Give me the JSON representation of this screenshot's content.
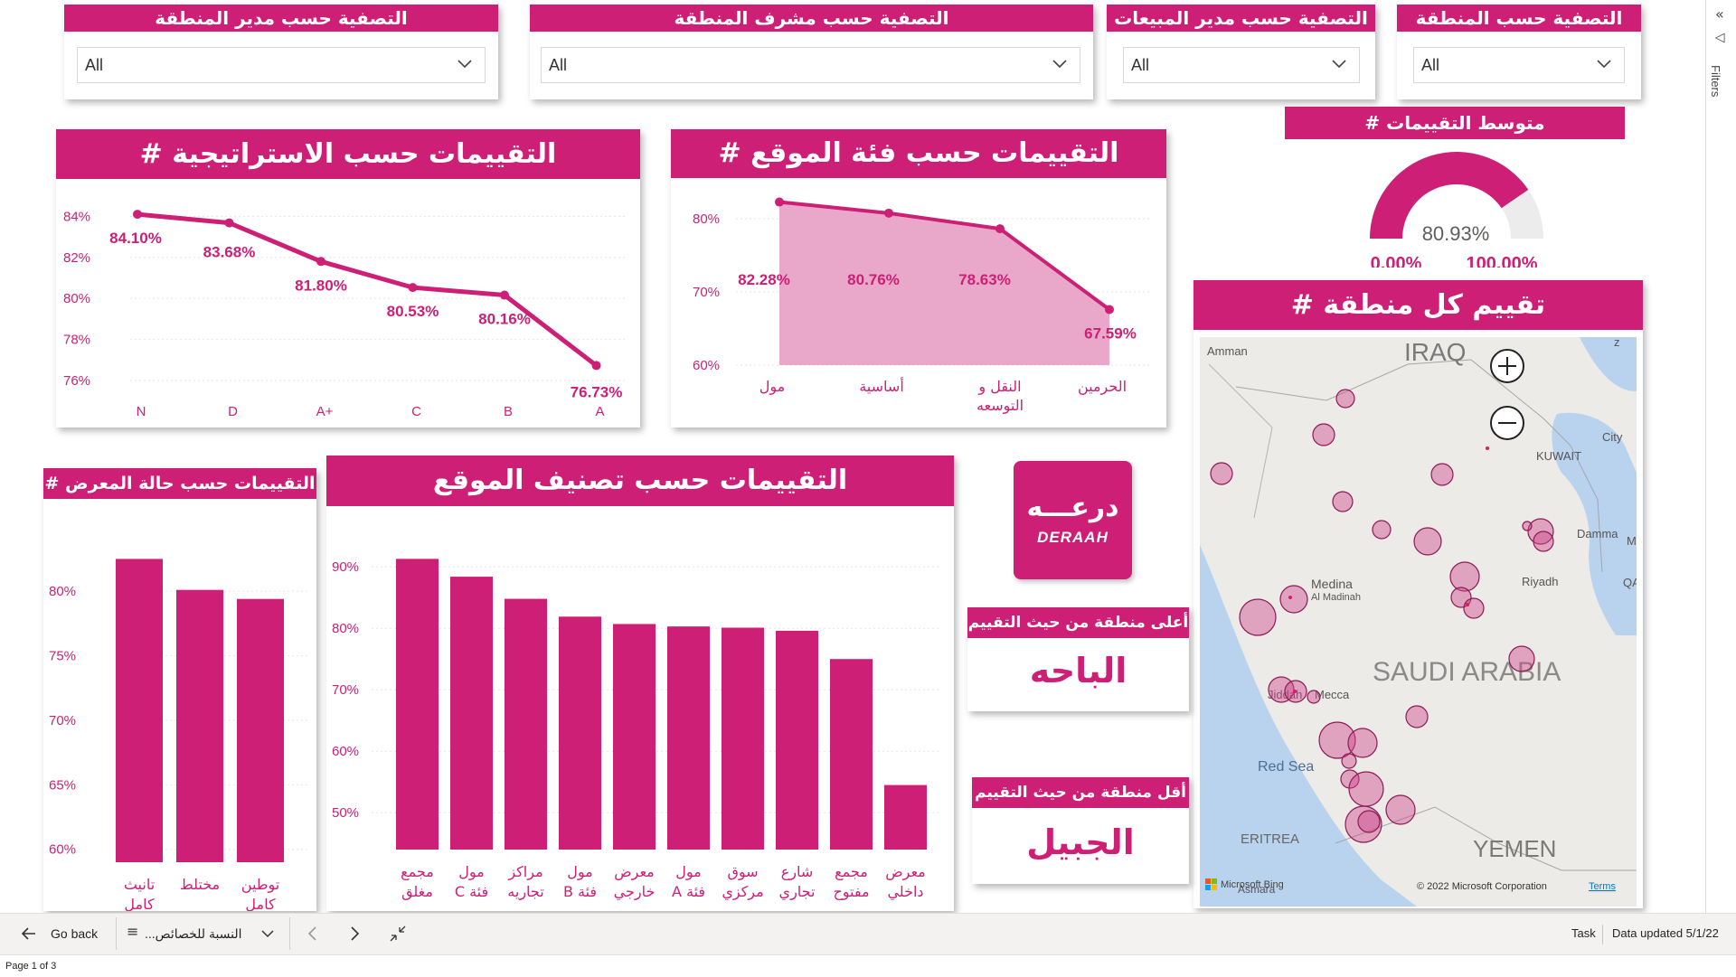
{
  "filters_pane": {
    "label": "Filters"
  },
  "slicers": [
    {
      "title": "التصفية حسب المنطقة",
      "value": "All"
    },
    {
      "title": "التصفية حسب مدير المبيعات",
      "value": "All"
    },
    {
      "title": "التصفية حسب مشرف المنطقة",
      "value": "All"
    },
    {
      "title": "التصفية حسب مدير المنطقة",
      "value": "All"
    }
  ],
  "strategy_chart": {
    "title": "# التقييمات حسب الاستراتيجية",
    "chart_data": {
      "type": "line",
      "categories": [
        "N",
        "D",
        "A+",
        "C",
        "B",
        "A"
      ],
      "values": [
        84.1,
        83.68,
        81.8,
        80.53,
        80.16,
        76.73
      ],
      "data_labels": [
        "84.10%",
        "83.68%",
        "81.80%",
        "80.53%",
        "80.16%",
        "76.73%"
      ],
      "yticks": [
        "84%",
        "82%",
        "80%",
        "78%",
        "76%"
      ],
      "ylim": [
        76,
        84.5
      ]
    }
  },
  "site_category_chart": {
    "title": "# التقييمات حسب فئة الموقع",
    "chart_data": {
      "type": "area",
      "categories": [
        "مول",
        "أساسية",
        "النقل و التوسعه",
        "الحرمين"
      ],
      "values": [
        82.28,
        80.76,
        78.63,
        67.59
      ],
      "data_labels": [
        "82.28%",
        "80.76%",
        "78.63%",
        "67.59%"
      ],
      "yticks": [
        "80%",
        "70%",
        "60%"
      ],
      "ylim": [
        60,
        85
      ]
    }
  },
  "gauge": {
    "title": "# متوسط التقييمات",
    "value": 80.93,
    "value_label": "80.93%",
    "min_label": "0.00%",
    "max_label": "100.00%"
  },
  "map": {
    "title": "# تقييم كل منطقة",
    "labels": {
      "iraq": "IRAQ",
      "amman": "Amman",
      "kuwait": "KUWAIT",
      "city": "City",
      "dammam": "Damma",
      "riyadh": "Riyadh",
      "medina": "Medina",
      "medina_ar": "Al Madinah",
      "saudi": "SAUDI ARABIA",
      "jiddah": "Jiddah",
      "mecca": "Mecca",
      "red_sea": "Red Sea",
      "eritrea": "ERITREA",
      "yemen": "YEMEN",
      "asmara": "Asmara",
      "qa": "QA",
      "z": "z",
      "m": "M"
    },
    "attribution": "© 2022 Microsoft Corporation",
    "terms": "Terms",
    "bing": "Microsoft Bing"
  },
  "showroom_chart": {
    "title": "# التقييمات حسب حالة المعرض",
    "chart_data": {
      "type": "bar",
      "categories": [
        "تانيث كامل",
        "مختلط",
        "توطين كامل"
      ],
      "values": [
        82.5,
        80.1,
        79.4
      ],
      "yticks": [
        "80%",
        "75%",
        "70%",
        "65%",
        "60%"
      ],
      "ylim": [
        59,
        84
      ]
    }
  },
  "classification_chart": {
    "title": "التقييمات حسب تصنيف الموقع",
    "chart_data": {
      "type": "bar",
      "categories": [
        "مجمع مغلق",
        "مول C فئة",
        "مراكز تجاريه",
        "مول B فئة",
        "معرض خارجي",
        "مول A فئة",
        "سوق مركزي",
        "شارع تجاري",
        "مجمع مفتوح",
        "معرض داخلي"
      ],
      "values": [
        91.3,
        88.4,
        84.8,
        81.9,
        80.7,
        80.3,
        80.1,
        79.6,
        75.0,
        54.5
      ],
      "yticks": [
        "90%",
        "80%",
        "70%",
        "60%",
        "50%"
      ],
      "ylim": [
        44,
        94
      ]
    }
  },
  "logo": {
    "arabic": "درعـــه",
    "latin": "DERAAH"
  },
  "top_region": {
    "title": "أعلى منطقة من حيث التقييم",
    "value": "الباحه"
  },
  "bottom_region": {
    "title": "أقل منطقة من حيث التقييم",
    "value": "الجبيل"
  },
  "footer": {
    "go_back": "Go back",
    "page_selector": "...النسبة للخصائص",
    "task": "Task",
    "data_updated": "Data updated 5/1/22",
    "page_count": "Page 1 of 3"
  },
  "colors": {
    "accent": "#cc1f75",
    "area_fill": "#e8a3c6",
    "bubble": "#d04a8e"
  }
}
